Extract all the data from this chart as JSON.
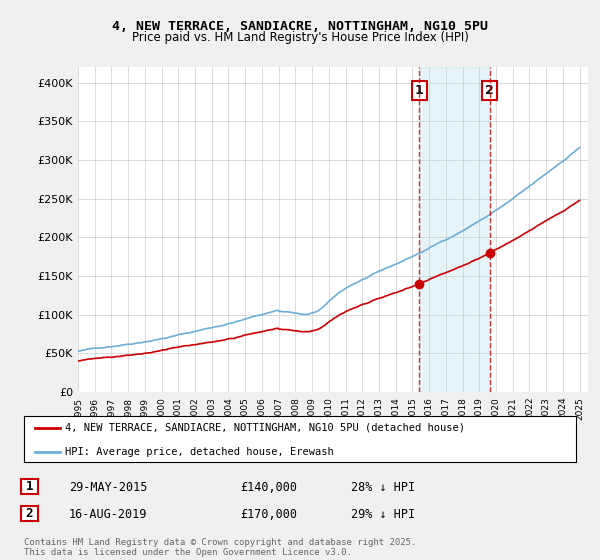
{
  "title": "4, NEW TERRACE, SANDIACRE, NOTTINGHAM, NG10 5PU",
  "subtitle": "Price paid vs. HM Land Registry's House Price Index (HPI)",
  "ylim": [
    0,
    420000
  ],
  "yticks": [
    0,
    50000,
    100000,
    150000,
    200000,
    250000,
    300000,
    350000,
    400000
  ],
  "ytick_labels": [
    "£0",
    "£50K",
    "£100K",
    "£150K",
    "£200K",
    "£250K",
    "£300K",
    "£350K",
    "£400K"
  ],
  "hpi_color": "#6baed6",
  "price_color": "#cc0000",
  "marker1_date": 2015.41,
  "marker2_date": 2019.62,
  "marker1_price": 140000,
  "marker2_price": 170000,
  "marker1_label": "29-MAY-2015",
  "marker2_label": "16-AUG-2019",
  "marker1_hpi_pct": "28% ↓ HPI",
  "marker2_hpi_pct": "29% ↓ HPI",
  "legend_price_label": "4, NEW TERRACE, SANDIACRE, NOTTINGHAM, NG10 5PU (detached house)",
  "legend_hpi_label": "HPI: Average price, detached house, Erewash",
  "footnote": "Contains HM Land Registry data © Crown copyright and database right 2025.\nThis data is licensed under the Open Government Licence v3.0.",
  "bg_color": "#f0f0f0",
  "plot_bg_color": "#ffffff",
  "grid_color": "#cccccc",
  "vline_color": "#cc0000",
  "shade_color": "#add8e6",
  "shade_alpha": 0.3
}
